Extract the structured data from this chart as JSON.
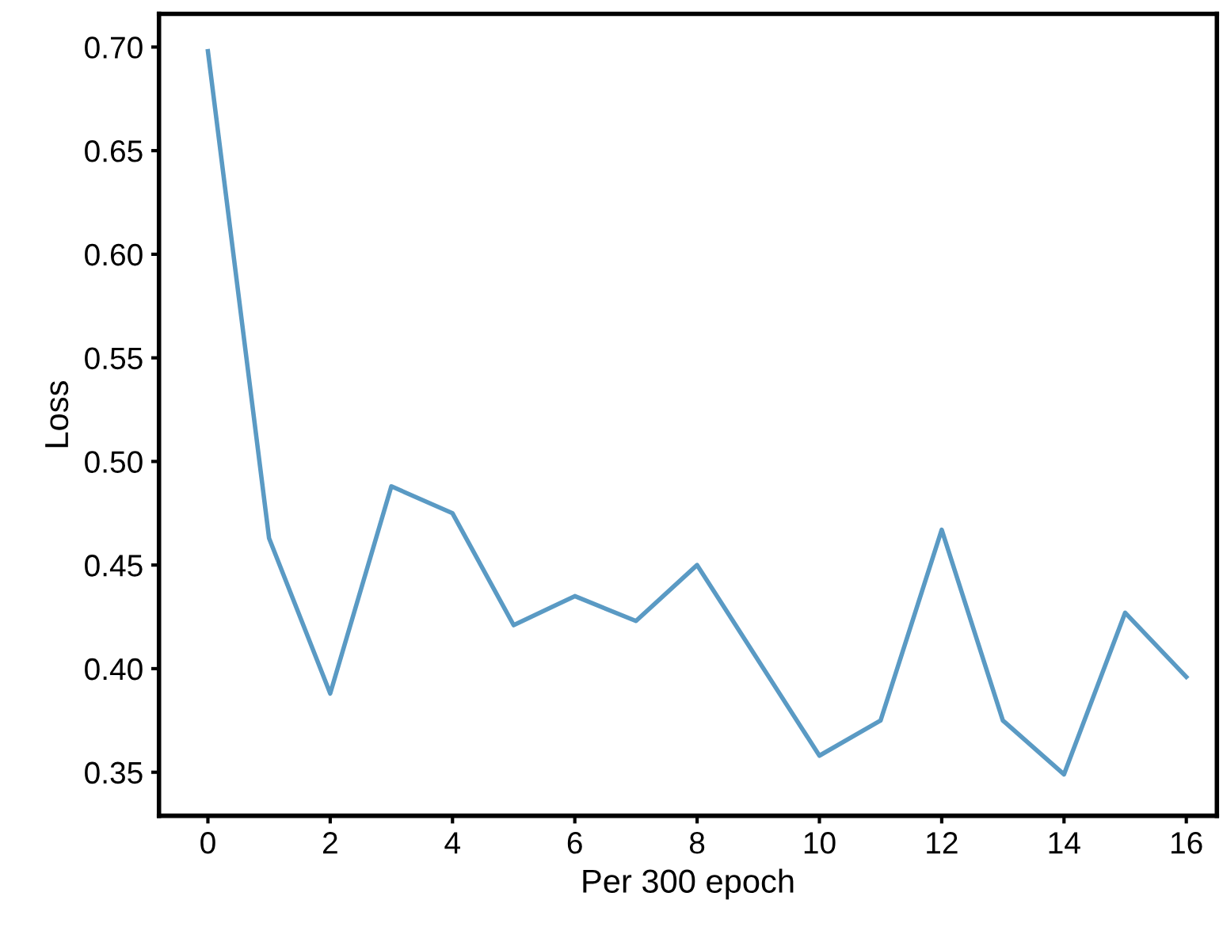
{
  "chart_data": {
    "type": "line",
    "xlabel": "Per 300 epoch",
    "ylabel": "Loss",
    "x": [
      0,
      1,
      2,
      3,
      4,
      5,
      6,
      7,
      8,
      9,
      10,
      11,
      12,
      13,
      14,
      15,
      16
    ],
    "series": [
      {
        "color": "#5a9ac4",
        "values": [
          0.698,
          0.463,
          0.388,
          0.488,
          0.475,
          0.421,
          0.435,
          0.423,
          0.45,
          0.404,
          0.358,
          0.375,
          0.467,
          0.375,
          0.349,
          0.427,
          0.396
        ]
      }
    ],
    "xlim": [
      -0.8,
      16.5
    ],
    "ylim": [
      0.329,
      0.716
    ],
    "xticks": [
      0,
      2,
      4,
      6,
      8,
      10,
      12,
      14,
      16
    ],
    "yticks": [
      {
        "value": 0.35,
        "label": "0.35"
      },
      {
        "value": 0.4,
        "label": "0.40"
      },
      {
        "value": 0.45,
        "label": "0.45"
      },
      {
        "value": 0.5,
        "label": "0.50"
      },
      {
        "value": 0.55,
        "label": "0.55"
      },
      {
        "value": 0.6,
        "label": "0.60"
      },
      {
        "value": 0.65,
        "label": "0.65"
      },
      {
        "value": 0.7,
        "label": "0.70"
      }
    ],
    "grid": false,
    "legend": false,
    "marker": "none",
    "line_style": "solid"
  }
}
